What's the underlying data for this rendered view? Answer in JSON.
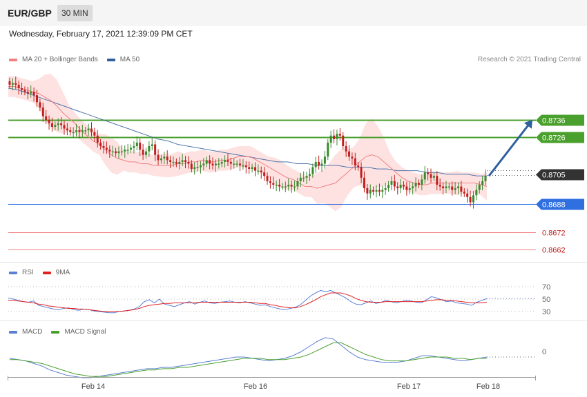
{
  "header": {
    "symbol": "EUR/GBP",
    "timeframe": "30 MIN"
  },
  "datetime": "Wednesday, February 17, 2021 12:39:09 PM CET",
  "copyright": "Research © 2021 Trading Central",
  "legends": {
    "price": [
      {
        "label": "MA 20 + Bollinger Bands",
        "color": "#f08080"
      },
      {
        "label": "MA 50",
        "color": "#2e5f9e"
      }
    ],
    "rsi": [
      {
        "label": "RSI",
        "color": "#5b7fd4"
      },
      {
        "label": "9MA",
        "color": "#e02020"
      }
    ],
    "macd": [
      {
        "label": "MACD",
        "color": "#5b7fd4"
      },
      {
        "label": "MACD Signal",
        "color": "#4aa02c"
      }
    ]
  },
  "colors": {
    "bull": "#3a8a2e",
    "bear": "#c21f1f",
    "resistance": "#4aa02c",
    "current": "#333333",
    "support": "#2f6fe0",
    "support2": "#f08080",
    "arrow": "#2e5f9e",
    "band": "#fdd8d8"
  },
  "chart_data": {
    "type": "line",
    "x_labels": [
      "Feb 14",
      "Feb 16",
      "Feb 17",
      "Feb 18"
    ],
    "price_range": [
      0.8655,
      0.8765
    ],
    "levels": [
      {
        "value": 0.8736,
        "label": "0.8736",
        "kind": "resistance"
      },
      {
        "value": 0.8726,
        "label": "0.8726",
        "kind": "resistance"
      },
      {
        "value": 0.8705,
        "label": "0.8705",
        "kind": "current"
      },
      {
        "value": 0.8688,
        "label": "0.8688",
        "kind": "support"
      },
      {
        "value": 0.8672,
        "label": "0.8672",
        "kind": "support2"
      },
      {
        "value": 0.8662,
        "label": "0.8662",
        "kind": "support2"
      }
    ],
    "forecast": {
      "from": 0.8704,
      "to": 0.8736
    },
    "price_close": [
      0.8756,
      0.8757,
      0.8756,
      0.8754,
      0.8753,
      0.8752,
      0.8751,
      0.8752,
      0.875,
      0.8746,
      0.8743,
      0.8738,
      0.8736,
      0.8734,
      0.8732,
      0.8733,
      0.8734,
      0.8733,
      0.8731,
      0.873,
      0.8729,
      0.8729,
      0.873,
      0.8729,
      0.873,
      0.873,
      0.8731,
      0.8729,
      0.8727,
      0.8723,
      0.8721,
      0.872,
      0.8719,
      0.8718,
      0.8718,
      0.8717,
      0.8718,
      0.8718,
      0.8719,
      0.8719,
      0.872,
      0.8721,
      0.8723,
      0.8719,
      0.8716,
      0.8718,
      0.8721,
      0.8722,
      0.8716,
      0.8713,
      0.8714,
      0.8715,
      0.8713,
      0.8712,
      0.8712,
      0.8711,
      0.8712,
      0.8713,
      0.8712,
      0.8711,
      0.8708,
      0.8709,
      0.8709,
      0.871,
      0.8711,
      0.8713,
      0.8711,
      0.871,
      0.8711,
      0.8711,
      0.8712,
      0.8713,
      0.8712,
      0.8711,
      0.8711,
      0.8711,
      0.871,
      0.871,
      0.8709,
      0.8708,
      0.8709,
      0.8707,
      0.8707,
      0.8706,
      0.8704,
      0.8701,
      0.87,
      0.8699,
      0.8699,
      0.8698,
      0.8698,
      0.8698,
      0.8699,
      0.8698,
      0.8698,
      0.8701,
      0.8703,
      0.8703,
      0.8704,
      0.8705,
      0.8709,
      0.8712,
      0.871,
      0.8711,
      0.8715,
      0.8723,
      0.8727,
      0.8725,
      0.8728,
      0.8727,
      0.8721,
      0.8718,
      0.8715,
      0.8714,
      0.871,
      0.8709,
      0.8703,
      0.8697,
      0.8694,
      0.8696,
      0.8695,
      0.8696,
      0.8695,
      0.8696,
      0.8697,
      0.8699,
      0.8701,
      0.8698,
      0.8697,
      0.8699,
      0.8698,
      0.8696,
      0.8697,
      0.8698,
      0.87,
      0.8699,
      0.8702,
      0.8706,
      0.8705,
      0.8703,
      0.8704,
      0.8699,
      0.8698,
      0.8697,
      0.8698,
      0.8698,
      0.8696,
      0.8697,
      0.8698,
      0.8695,
      0.8694,
      0.8692,
      0.8689,
      0.8693,
      0.8696,
      0.8699,
      0.8701,
      0.8704
    ],
    "ma20": [
      0.8755,
      0.8755,
      0.8754,
      0.8753,
      0.8752,
      0.8751,
      0.8749,
      0.8747,
      0.8744,
      0.874,
      0.8737,
      0.8734,
      0.873,
      0.8727,
      0.8724,
      0.8722,
      0.8719,
      0.8716,
      0.8714,
      0.8713,
      0.8712,
      0.8712,
      0.8711,
      0.8711,
      0.871,
      0.871,
      0.871,
      0.871,
      0.8711,
      0.8711,
      0.8712,
      0.8712,
      0.8713,
      0.8712,
      0.8712,
      0.8713,
      0.8713,
      0.8714,
      0.8715,
      0.8715,
      0.8715,
      0.8713,
      0.8711,
      0.8709,
      0.8707,
      0.8705,
      0.8703,
      0.8702,
      0.87,
      0.8698,
      0.8698,
      0.8697,
      0.8698,
      0.8699,
      0.87,
      0.8703,
      0.8706,
      0.8709,
      0.8712,
      0.8715,
      0.8716,
      0.8715,
      0.8712,
      0.8709,
      0.8706,
      0.8703,
      0.8701,
      0.87,
      0.8699,
      0.8699,
      0.87,
      0.87,
      0.87,
      0.87,
      0.87,
      0.87,
      0.87,
      0.87,
      0.8699,
      0.8698
    ],
    "ma50": [
      0.8754,
      0.8753,
      0.8751,
      0.8749,
      0.8747,
      0.8745,
      0.8743,
      0.8741,
      0.8739,
      0.8737,
      0.8735,
      0.8733,
      0.8731,
      0.8729,
      0.8727,
      0.8725,
      0.8724,
      0.8722,
      0.8721,
      0.872,
      0.8719,
      0.8718,
      0.8717,
      0.8716,
      0.8715,
      0.8714,
      0.8713,
      0.8712,
      0.8712,
      0.8711,
      0.8711,
      0.871,
      0.871,
      0.871,
      0.8709,
      0.8709,
      0.8709,
      0.8708,
      0.8708,
      0.8707,
      0.8707,
      0.8707,
      0.8706,
      0.8706,
      0.8705,
      0.8705,
      0.8705,
      0.8704,
      0.8704
    ],
    "rsi_ticks": [
      70,
      50,
      30
    ],
    "rsi": [
      52,
      50,
      48,
      46,
      45,
      47,
      40,
      38,
      36,
      34,
      33,
      35,
      36,
      33,
      32,
      34,
      33,
      31,
      30,
      29,
      28,
      28,
      30,
      31,
      32,
      34,
      38,
      46,
      49,
      44,
      50,
      42,
      40,
      38,
      41,
      44,
      46,
      42,
      45,
      47,
      44,
      43,
      45,
      46,
      47,
      45,
      44,
      46,
      44,
      42,
      40,
      41,
      38,
      36,
      34,
      33,
      35,
      37,
      41,
      48,
      55,
      60,
      64,
      62,
      64,
      60,
      56,
      52,
      46,
      42,
      41,
      44,
      47,
      43,
      45,
      48,
      46,
      44,
      46,
      48,
      47,
      45,
      44,
      49,
      54,
      52,
      49,
      46,
      47,
      44,
      43,
      42,
      40,
      45,
      48,
      51
    ],
    "rsi_ma": [
      48,
      48,
      47,
      46,
      45,
      44,
      42,
      41,
      39,
      38,
      37,
      36,
      35,
      35,
      34,
      34,
      33,
      32,
      31,
      30,
      30,
      30,
      30,
      31,
      32,
      33,
      35,
      38,
      40,
      41,
      42,
      43,
      43,
      44,
      44,
      44,
      44,
      44,
      45,
      45,
      45,
      45,
      45,
      45,
      45,
      45,
      45,
      45,
      45,
      44,
      43,
      43,
      41,
      40,
      38,
      37,
      36,
      36,
      38,
      41,
      45,
      49,
      54,
      57,
      60,
      60,
      60,
      58,
      55,
      51,
      48,
      46,
      45,
      45,
      45,
      46,
      46,
      46,
      46,
      46,
      46,
      46,
      46,
      47,
      48,
      49,
      49,
      48,
      48,
      47,
      46,
      45,
      44,
      44,
      44,
      45
    ],
    "macd_ticks": [
      0
    ],
    "macd": [
      -0.0001,
      -0.0002,
      -0.0003,
      -0.0005,
      -0.0007,
      -0.001,
      -0.0012,
      -0.0014,
      -0.0015,
      -0.0016,
      -0.0016,
      -0.0015,
      -0.0014,
      -0.0013,
      -0.0012,
      -0.0011,
      -0.001,
      -0.0009,
      -0.0009,
      -0.0008,
      -0.0008,
      -0.0007,
      -0.0006,
      -0.0005,
      -0.0004,
      -0.0003,
      -0.0002,
      -0.0001,
      0.0,
      0.0,
      -0.0001,
      -0.0002,
      -0.0003,
      -0.0002,
      -0.0001,
      0.0001,
      0.0004,
      0.0008,
      0.0012,
      0.0015,
      0.0014,
      0.0009,
      0.0004,
      0.0,
      -0.0002,
      -0.0003,
      -0.0004,
      -0.0004,
      -0.0004,
      -0.0003,
      -0.0001,
      0.0001,
      0.0001,
      0.0,
      -0.0001,
      -0.0002,
      -0.0003,
      -0.0002,
      -0.0001,
      0.0
    ],
    "macd_signal": [
      -0.0002,
      -0.0002,
      -0.0003,
      -0.0004,
      -0.0005,
      -0.0007,
      -0.0009,
      -0.0011,
      -0.0013,
      -0.0014,
      -0.0015,
      -0.0015,
      -0.0015,
      -0.0014,
      -0.0013,
      -0.0012,
      -0.0011,
      -0.001,
      -0.001,
      -0.0009,
      -0.0009,
      -0.0008,
      -0.0008,
      -0.0007,
      -0.0006,
      -0.0005,
      -0.0004,
      -0.0003,
      -0.0002,
      -0.0001,
      -0.0001,
      -0.0001,
      -0.0002,
      -0.0002,
      -0.0002,
      -0.0001,
      0.0,
      0.0002,
      0.0005,
      0.0008,
      0.0011,
      0.0011,
      0.0008,
      0.0005,
      0.0002,
      0.0,
      -0.0002,
      -0.0003,
      -0.0003,
      -0.0003,
      -0.0002,
      -0.0001,
      0.0,
      0.0,
      0.0,
      -0.0001,
      -0.0001,
      -0.0002,
      -0.0001,
      -0.0001
    ]
  }
}
